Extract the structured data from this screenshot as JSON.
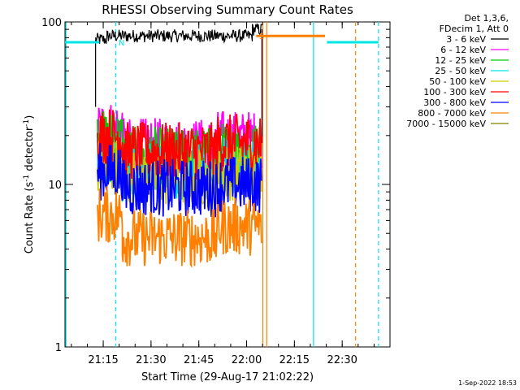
{
  "chart_data": {
    "type": "line",
    "title": "RHESSI Observing Summary Count Rates",
    "xlabel": "Start Time (29-Aug-17 21:02:22)",
    "ylabel_main": "Count Rate (s",
    "ylabel_sup1": "-1",
    "ylabel_mid": " detector",
    "ylabel_sup2": "-1",
    "ylabel_end": ")",
    "y_scale": "log",
    "ylim": [
      1,
      100
    ],
    "xlim_minutes": [
      21.05,
      22.75
    ],
    "x_ticks": [
      {
        "label": "21:15",
        "value": 21.25
      },
      {
        "label": "21:30",
        "value": 21.5
      },
      {
        "label": "21:45",
        "value": 21.75
      },
      {
        "label": "22:00",
        "value": 22.0
      },
      {
        "label": "22:15",
        "value": 22.25
      },
      {
        "label": "22:30",
        "value": 22.5
      }
    ],
    "y_ticks": [
      {
        "label": "100",
        "value": 100
      },
      {
        "label": "10",
        "value": 10
      },
      {
        "label": "1",
        "value": 1
      }
    ],
    "header_lines": [
      "Det 1,3,6,",
      "FDecim 1, Att 0"
    ],
    "series": [
      {
        "name": "3 - 6 keV",
        "color": "#000000",
        "levels": [
          {
            "start": 21.21,
            "end": 21.27,
            "value": 78
          },
          {
            "start": 21.27,
            "end": 22.03,
            "value": 82
          },
          {
            "start": 22.03,
            "end": 22.08,
            "value": 90
          }
        ]
      },
      {
        "name": "6 - 12 keV",
        "color": "#ff00ff",
        "levels": [
          {
            "start": 21.22,
            "end": 21.35,
            "value": 22
          },
          {
            "start": 21.35,
            "end": 21.85,
            "value": 17
          },
          {
            "start": 21.85,
            "end": 22.08,
            "value": 19
          }
        ]
      },
      {
        "name": "12 - 25 keV",
        "color": "#00cc00",
        "levels": [
          {
            "start": 21.22,
            "end": 21.35,
            "value": 19
          },
          {
            "start": 21.35,
            "end": 21.85,
            "value": 15
          },
          {
            "start": 21.85,
            "end": 22.08,
            "value": 16
          }
        ]
      },
      {
        "name": "25 - 50 keV",
        "color": "#00e5e5",
        "levels": [
          {
            "start": 21.22,
            "end": 21.35,
            "value": 15
          },
          {
            "start": 21.35,
            "end": 21.85,
            "value": 12
          },
          {
            "start": 21.85,
            "end": 22.08,
            "value": 13
          }
        ]
      },
      {
        "name": "50 - 100 keV",
        "color": "#cccc00",
        "levels": [
          {
            "start": 21.22,
            "end": 21.35,
            "value": 13
          },
          {
            "start": 21.35,
            "end": 21.85,
            "value": 11
          },
          {
            "start": 21.85,
            "end": 22.08,
            "value": 12
          }
        ]
      },
      {
        "name": "100 - 300 keV",
        "color": "#ff0000",
        "levels": [
          {
            "start": 21.22,
            "end": 21.35,
            "value": 20
          },
          {
            "start": 21.35,
            "end": 21.85,
            "value": 16
          },
          {
            "start": 21.85,
            "end": 22.08,
            "value": 18
          }
        ]
      },
      {
        "name": "300 - 800 keV",
        "color": "#0000ff",
        "levels": [
          {
            "start": 21.22,
            "end": 21.35,
            "value": 12
          },
          {
            "start": 21.35,
            "end": 21.85,
            "value": 9.5
          },
          {
            "start": 21.85,
            "end": 22.08,
            "value": 10
          }
        ]
      },
      {
        "name": "800 - 7000 keV",
        "color": "#ff8000",
        "levels": [
          {
            "start": 21.22,
            "end": 21.35,
            "value": 6.5
          },
          {
            "start": 21.35,
            "end": 21.85,
            "value": 4.7
          },
          {
            "start": 21.85,
            "end": 22.08,
            "value": 5.5
          }
        ]
      },
      {
        "name": "7000 - 15000 keV",
        "color": "#808000",
        "levels": []
      }
    ],
    "attenuator_bars": [
      {
        "start": 21.05,
        "end": 21.23,
        "value": 75,
        "color": "#00e5e5"
      },
      {
        "start": 22.05,
        "end": 22.41,
        "value": 82,
        "color": "#ff8000"
      },
      {
        "start": 22.42,
        "end": 22.69,
        "value": 75,
        "color": "#00e5e5"
      }
    ],
    "vertical_lines": [
      {
        "x": 21.055,
        "color": "#00e5e5",
        "style": "solid"
      },
      {
        "x": 21.315,
        "color": "#00e5e5",
        "style": "dashed"
      },
      {
        "x": 22.085,
        "color": "#ff8000",
        "style": "solid"
      },
      {
        "x": 22.105,
        "color": "#ff8000",
        "style": "solid"
      },
      {
        "x": 22.35,
        "color": "#00e5e5",
        "style": "solid"
      },
      {
        "x": 22.57,
        "color": "#ff8000",
        "style": "dashed"
      },
      {
        "x": 22.69,
        "color": "#00e5e5",
        "style": "dashed"
      }
    ],
    "annotations": [
      {
        "text": "N",
        "x": 21.33,
        "value": 75,
        "color": "#00e5e5"
      },
      {
        "text": "S",
        "x": 22.065,
        "value": 82,
        "color": "#ff8000"
      }
    ],
    "footer": "1-Sep-2022 18:53"
  }
}
